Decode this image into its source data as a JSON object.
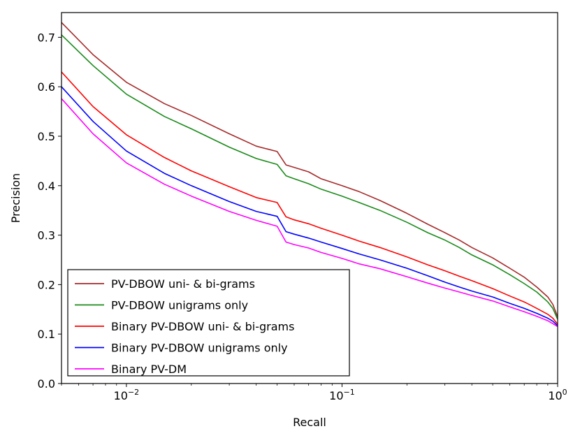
{
  "chart_data": {
    "type": "line",
    "title": "",
    "xlabel": "Recall",
    "ylabel": "Precision",
    "xscale": "log",
    "xlim": [
      0.005,
      1
    ],
    "ylim": [
      0.0,
      0.75
    ],
    "xticks": [
      {
        "value": 0.01,
        "base": "10",
        "exp": "−2"
      },
      {
        "value": 0.1,
        "base": "10",
        "exp": "−1"
      },
      {
        "value": 1,
        "base": "10",
        "exp": "0"
      }
    ],
    "yticks": [
      {
        "value": 0.0,
        "label": "0.0"
      },
      {
        "value": 0.1,
        "label": "0.1"
      },
      {
        "value": 0.2,
        "label": "0.2"
      },
      {
        "value": 0.3,
        "label": "0.3"
      },
      {
        "value": 0.4,
        "label": "0.4"
      },
      {
        "value": 0.5,
        "label": "0.5"
      },
      {
        "value": 0.6,
        "label": "0.6"
      },
      {
        "value": 0.7,
        "label": "0.7"
      }
    ],
    "grid": false,
    "legend_position": "lower-left",
    "series": [
      {
        "name": "PV-DBOW uni- & bi-grams",
        "color": "#a52a2a",
        "x": [
          0.005,
          0.007,
          0.01,
          0.015,
          0.02,
          0.03,
          0.04,
          0.05,
          0.055,
          0.06,
          0.07,
          0.08,
          0.1,
          0.12,
          0.15,
          0.2,
          0.25,
          0.3,
          0.35,
          0.4,
          0.5,
          0.6,
          0.7,
          0.8,
          0.9,
          0.95,
          1.0
        ],
        "y": [
          0.73,
          0.665,
          0.609,
          0.566,
          0.542,
          0.505,
          0.48,
          0.469,
          0.442,
          0.437,
          0.428,
          0.414,
          0.4,
          0.388,
          0.37,
          0.344,
          0.322,
          0.305,
          0.29,
          0.275,
          0.254,
          0.233,
          0.215,
          0.195,
          0.175,
          0.16,
          0.135
        ]
      },
      {
        "name": "PV-DBOW unigrams only",
        "color": "#1a8a1a",
        "x": [
          0.005,
          0.007,
          0.01,
          0.015,
          0.02,
          0.03,
          0.04,
          0.05,
          0.055,
          0.06,
          0.07,
          0.08,
          0.1,
          0.12,
          0.15,
          0.2,
          0.25,
          0.3,
          0.35,
          0.4,
          0.5,
          0.6,
          0.7,
          0.8,
          0.9,
          0.95,
          1.0
        ],
        "y": [
          0.705,
          0.643,
          0.585,
          0.54,
          0.515,
          0.478,
          0.455,
          0.443,
          0.42,
          0.414,
          0.404,
          0.393,
          0.379,
          0.366,
          0.35,
          0.326,
          0.305,
          0.29,
          0.275,
          0.26,
          0.24,
          0.22,
          0.202,
          0.185,
          0.165,
          0.152,
          0.13
        ]
      },
      {
        "name": "Binary PV-DBOW uni- & bi-grams",
        "color": "#ff0000",
        "x": [
          0.005,
          0.007,
          0.01,
          0.015,
          0.02,
          0.03,
          0.04,
          0.05,
          0.055,
          0.06,
          0.07,
          0.08,
          0.1,
          0.12,
          0.15,
          0.2,
          0.25,
          0.3,
          0.35,
          0.4,
          0.5,
          0.6,
          0.7,
          0.8,
          0.9,
          0.95,
          1.0
        ],
        "y": [
          0.63,
          0.56,
          0.503,
          0.457,
          0.43,
          0.398,
          0.376,
          0.366,
          0.337,
          0.331,
          0.323,
          0.314,
          0.3,
          0.288,
          0.275,
          0.256,
          0.24,
          0.228,
          0.217,
          0.208,
          0.192,
          0.177,
          0.165,
          0.152,
          0.14,
          0.132,
          0.12
        ]
      },
      {
        "name": "Binary PV-DBOW unigrams only",
        "color": "#0000ff",
        "x": [
          0.005,
          0.007,
          0.01,
          0.015,
          0.02,
          0.03,
          0.04,
          0.05,
          0.055,
          0.06,
          0.07,
          0.08,
          0.1,
          0.12,
          0.15,
          0.2,
          0.25,
          0.3,
          0.35,
          0.4,
          0.5,
          0.6,
          0.7,
          0.8,
          0.9,
          0.95,
          1.0
        ],
        "y": [
          0.6,
          0.53,
          0.47,
          0.425,
          0.4,
          0.368,
          0.348,
          0.338,
          0.307,
          0.302,
          0.294,
          0.286,
          0.273,
          0.262,
          0.25,
          0.233,
          0.218,
          0.205,
          0.195,
          0.187,
          0.175,
          0.162,
          0.152,
          0.142,
          0.132,
          0.126,
          0.117
        ]
      },
      {
        "name": "Binary PV-DM",
        "color": "#ff00ff",
        "x": [
          0.005,
          0.007,
          0.01,
          0.015,
          0.02,
          0.03,
          0.04,
          0.05,
          0.055,
          0.06,
          0.07,
          0.08,
          0.1,
          0.12,
          0.15,
          0.2,
          0.25,
          0.3,
          0.35,
          0.4,
          0.5,
          0.6,
          0.7,
          0.8,
          0.9,
          0.95,
          1.0
        ],
        "y": [
          0.576,
          0.505,
          0.446,
          0.403,
          0.379,
          0.348,
          0.33,
          0.318,
          0.286,
          0.281,
          0.274,
          0.265,
          0.253,
          0.242,
          0.232,
          0.216,
          0.203,
          0.193,
          0.185,
          0.178,
          0.167,
          0.155,
          0.145,
          0.136,
          0.127,
          0.121,
          0.115
        ]
      }
    ]
  }
}
